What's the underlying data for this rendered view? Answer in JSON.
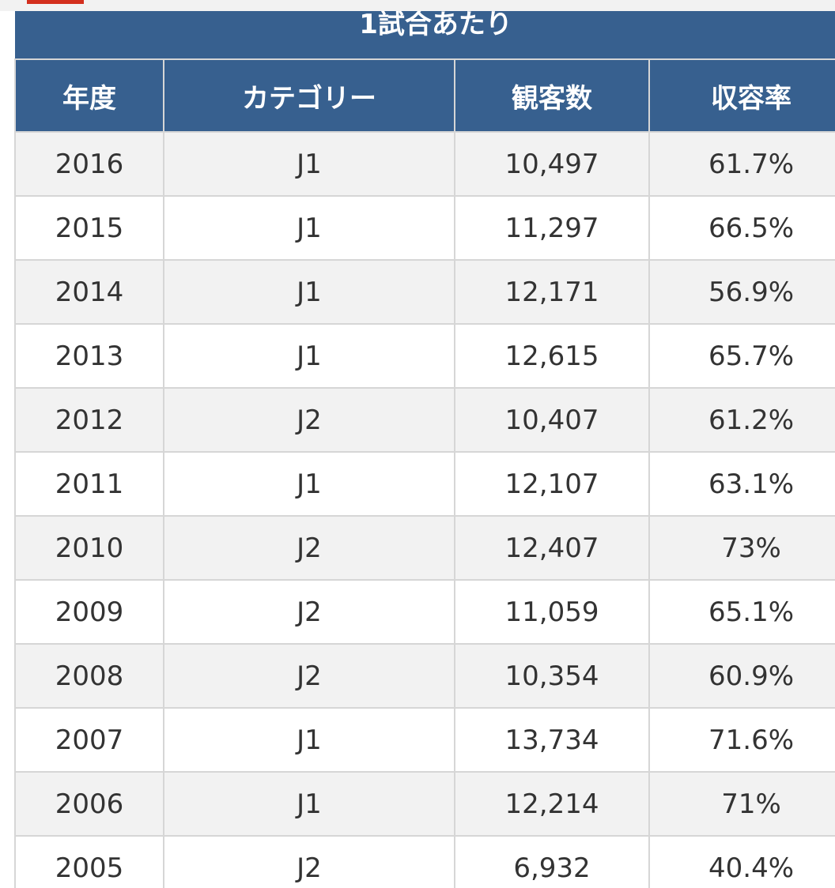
{
  "table": {
    "caption": "1試合あたり",
    "headers": [
      "年度",
      "カテゴリー",
      "観客数",
      "収容率"
    ],
    "rows": [
      [
        "2016",
        "J1",
        "10,497",
        "61.7%"
      ],
      [
        "2015",
        "J1",
        "11,297",
        "66.5%"
      ],
      [
        "2014",
        "J1",
        "12,171",
        "56.9%"
      ],
      [
        "2013",
        "J1",
        "12,615",
        "65.7%"
      ],
      [
        "2012",
        "J2",
        "10,407",
        "61.2%"
      ],
      [
        "2011",
        "J1",
        "12,107",
        "63.1%"
      ],
      [
        "2010",
        "J2",
        "12,407",
        "73%"
      ],
      [
        "2009",
        "J2",
        "11,059",
        "65.1%"
      ],
      [
        "2008",
        "J2",
        "10,354",
        "60.9%"
      ],
      [
        "2007",
        "J1",
        "13,734",
        "71.6%"
      ],
      [
        "2006",
        "J1",
        "12,214",
        "71%"
      ],
      [
        "2005",
        "J2",
        "6,932",
        "40.4%"
      ]
    ]
  },
  "colors": {
    "header_bg": "#37608f",
    "header_text": "#ffffff",
    "row_alt_bg": "#f2f2f2",
    "border": "#d6d6d6",
    "accent_tab": "#d32f1e"
  }
}
